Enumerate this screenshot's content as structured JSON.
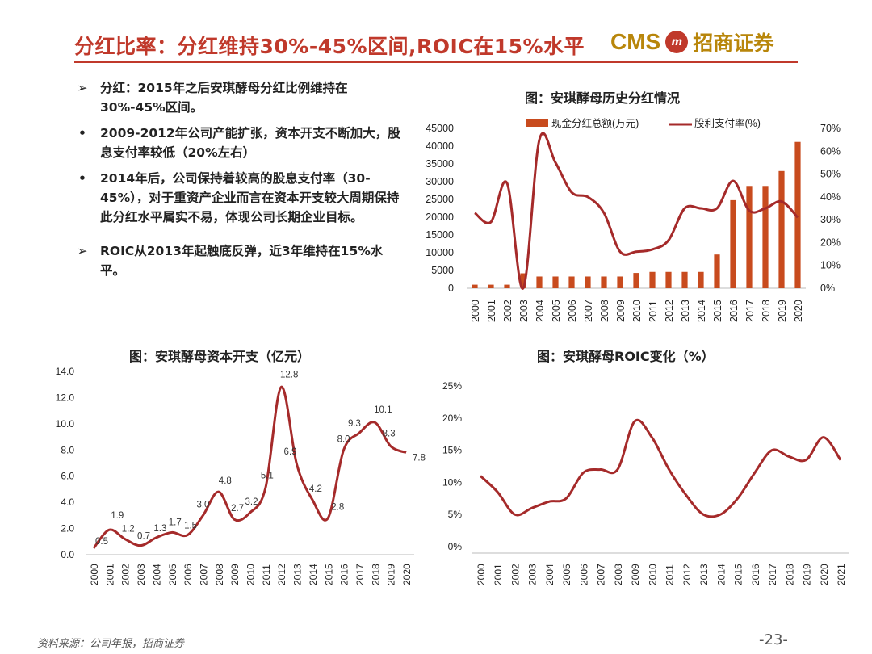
{
  "header": {
    "title": "分红比率：分红维持30%-45%区间,ROIC在15%水平",
    "logo_cms": "CMS",
    "logo_mark": "m",
    "logo_cn": "招商证券"
  },
  "bullets": [
    {
      "marker": "➢",
      "text": "分红：2015年之后安琪酵母分红比例维持在30%-45%区间。"
    },
    {
      "marker": "•",
      "text": "2009-2012年公司产能扩张，资本开支不断加大，股息支付率较低（20%左右）"
    },
    {
      "marker": "•",
      "text": "2014年后，公司保持着较高的股息支付率（30-45%），对于重资产企业而言在资本开支较大周期保持此分红水平属实不易，体现公司长期企业目标。"
    },
    {
      "marker": "➢",
      "text": "ROIC从2013年起触底反弹，近3年维持在15%水平。"
    }
  ],
  "colors": {
    "accent": "#c0392b",
    "bar": "#c84b1e",
    "line": "#a52a2a",
    "gold": "#b8860b"
  },
  "chart_data": [
    {
      "id": "dividend",
      "type": "bar",
      "title": "图：安琪酵母历史分红情况",
      "categories": [
        "2000",
        "2001",
        "2002",
        "2003",
        "2004",
        "2005",
        "2006",
        "2007",
        "2008",
        "2009",
        "2010",
        "2011",
        "2012",
        "2013",
        "2014",
        "2015",
        "2016",
        "2017",
        "2018",
        "2019",
        "2020"
      ],
      "series": [
        {
          "name": "现金分红总额(万元)",
          "type": "bar",
          "axis": "left",
          "values": [
            1000,
            1000,
            1000,
            4200,
            3300,
            3300,
            3300,
            3300,
            3300,
            3300,
            4300,
            4600,
            4600,
            4600,
            4600,
            9500,
            24800,
            28800,
            28800,
            33000,
            41200
          ]
        },
        {
          "name": "股利支付率(%)",
          "type": "line",
          "axis": "right",
          "values": [
            33,
            29,
            46,
            0,
            65,
            55,
            42,
            40,
            33,
            16,
            16,
            17,
            21,
            35,
            35,
            35,
            47,
            34,
            35,
            38,
            31
          ]
        }
      ],
      "yleft": {
        "min": 0,
        "max": 45000,
        "ticks": [
          "45000",
          "40000",
          "35000",
          "30000",
          "25000",
          "20000",
          "15000",
          "10000",
          "5000",
          "0"
        ]
      },
      "yright": {
        "min": 0,
        "max": 70,
        "ticks": [
          "70%",
          "60%",
          "50%",
          "40%",
          "30%",
          "20%",
          "10%",
          "0%"
        ]
      }
    },
    {
      "id": "capex",
      "type": "line",
      "title": "图：安琪酵母资本开支（亿元）",
      "categories": [
        "2000",
        "2001",
        "2002",
        "2003",
        "2004",
        "2005",
        "2006",
        "2007",
        "2008",
        "2009",
        "2010",
        "2011",
        "2012",
        "2013",
        "2014",
        "2015",
        "2016",
        "2017",
        "2018",
        "2019",
        "2020"
      ],
      "values": [
        0.5,
        1.9,
        1.2,
        0.7,
        1.3,
        1.7,
        1.5,
        3.0,
        4.8,
        2.7,
        3.2,
        5.1,
        12.8,
        6.9,
        4.2,
        2.8,
        8.0,
        9.3,
        10.1,
        8.3,
        7.8
      ],
      "labels": [
        "0.5",
        "1.9",
        "1.2",
        "0.7",
        "1.3",
        "1.7",
        "1.5",
        "3.0",
        "4.8",
        "2.7",
        "3.2",
        "5.1",
        "12.8",
        "6.9",
        "4.2",
        "2.8",
        "8.0",
        "9.3",
        "10.1",
        "8.3",
        "7.8"
      ],
      "ylim": [
        0,
        14
      ],
      "yticks": [
        "14.0",
        "12.0",
        "10.0",
        "8.0",
        "6.0",
        "4.0",
        "2.0",
        "0.0"
      ]
    },
    {
      "id": "roic",
      "type": "line",
      "title": "图：安琪酵母ROIC变化（%）",
      "categories": [
        "2000",
        "2001",
        "2002",
        "2003",
        "2004",
        "2005",
        "2006",
        "2007",
        "2008",
        "2009",
        "2010",
        "2011",
        "2012",
        "2013",
        "2014",
        "2015",
        "2016",
        "2017",
        "2018",
        "2019",
        "2020",
        "2021"
      ],
      "values": [
        11,
        8.5,
        5,
        6,
        7,
        7.5,
        11.5,
        12,
        12,
        19.5,
        17,
        12,
        8,
        5,
        5,
        7.5,
        11.5,
        15,
        14,
        13.5,
        17,
        13.5
      ],
      "ylim": [
        0,
        25
      ],
      "yticks": [
        "25%",
        "20%",
        "15%",
        "10%",
        "5%",
        "0%"
      ]
    }
  ],
  "footer": {
    "source": "资料来源：公司年报，招商证券",
    "page": "-23-"
  }
}
